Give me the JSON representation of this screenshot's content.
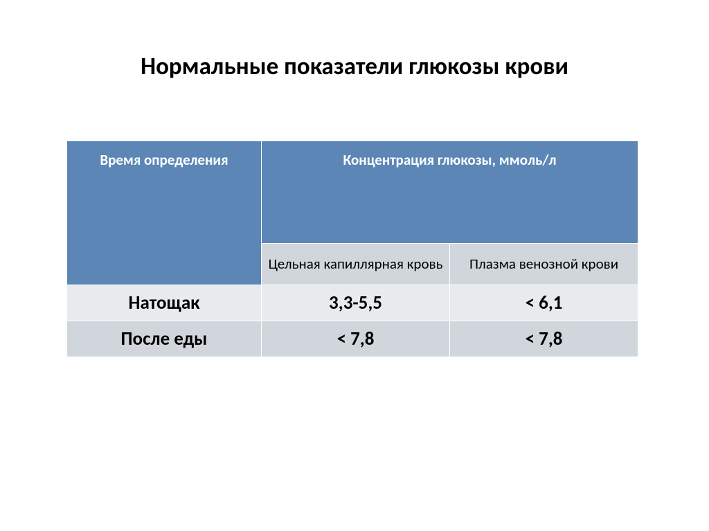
{
  "title": "Нормальные показатели глюкозы крови",
  "table": {
    "header_time": "Время определения",
    "header_conc": "Концентрация глюкозы, ммоль/л",
    "sub_capillary": "Цельная капиллярная кровь",
    "sub_plasma": "Плазма венозной крови",
    "rows": [
      {
        "label": "Натощак",
        "capillary": "3,3-5,5",
        "plasma": "< 6,1"
      },
      {
        "label": "После еды",
        "capillary": "< 7,8",
        "plasma": "< 7,8"
      }
    ]
  },
  "style": {
    "header_bg": "#5b86b6",
    "header_text": "#ffffff",
    "subhead_bg": "#d1d6dc",
    "row_light_bg": "#e8ebee",
    "row_dark_bg": "#d1d6dc",
    "cell_text": "#000000",
    "title_fontsize": 35,
    "header_fontsize": 21,
    "cell_fontsize": 27,
    "border_color": "#ffffff",
    "page_bg": "#ffffff"
  }
}
